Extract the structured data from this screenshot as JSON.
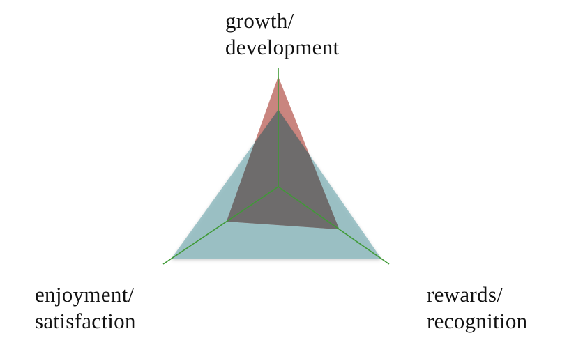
{
  "chart_data": {
    "type": "radar",
    "axes": [
      {
        "id": "top",
        "lines": [
          "growth/",
          "development"
        ]
      },
      {
        "id": "right",
        "lines": [
          "rewards/",
          "recognition"
        ]
      },
      {
        "id": "left",
        "lines": [
          "enjoyment/",
          "satisfaction"
        ]
      }
    ],
    "series": [
      {
        "values": [
          0.65,
          0.93,
          0.93
        ],
        "color": "#88b6bb",
        "opacity": 0.78
      },
      {
        "values": [
          0.93,
          0.55,
          0.45
        ],
        "color": "#b4564e",
        "opacity": 0.72
      }
    ],
    "overlap_color": "#6a6c6b",
    "axis_line_color": "#3f9a36",
    "gridlines": false,
    "legend": false
  }
}
